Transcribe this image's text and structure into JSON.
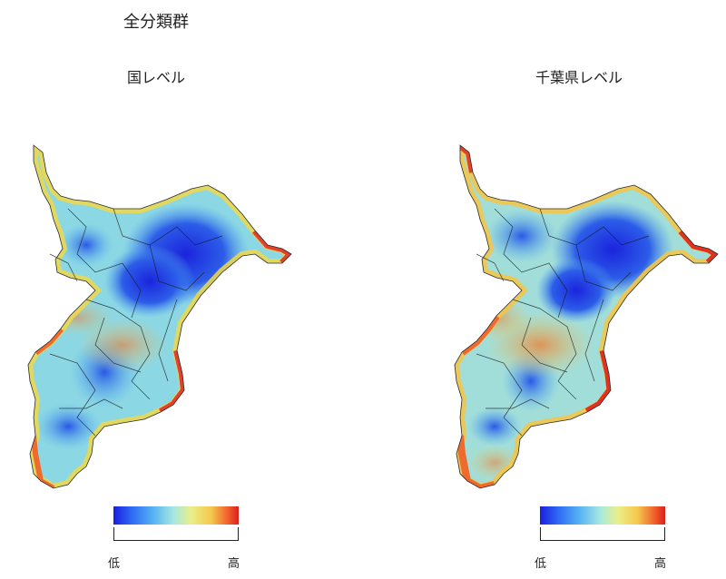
{
  "title": "全分類群",
  "panels": [
    {
      "title": "国レベル"
    },
    {
      "title": "千葉県レベル"
    }
  ],
  "legend": {
    "low": "低",
    "high": "高"
  },
  "colors": {
    "low": "#1b1fe0",
    "mid_low": "#57b4f3",
    "mid": "#e9ef8a",
    "mid_high": "#f5c84e",
    "high": "#d9201d",
    "boundary": "#1a1a1a"
  }
}
